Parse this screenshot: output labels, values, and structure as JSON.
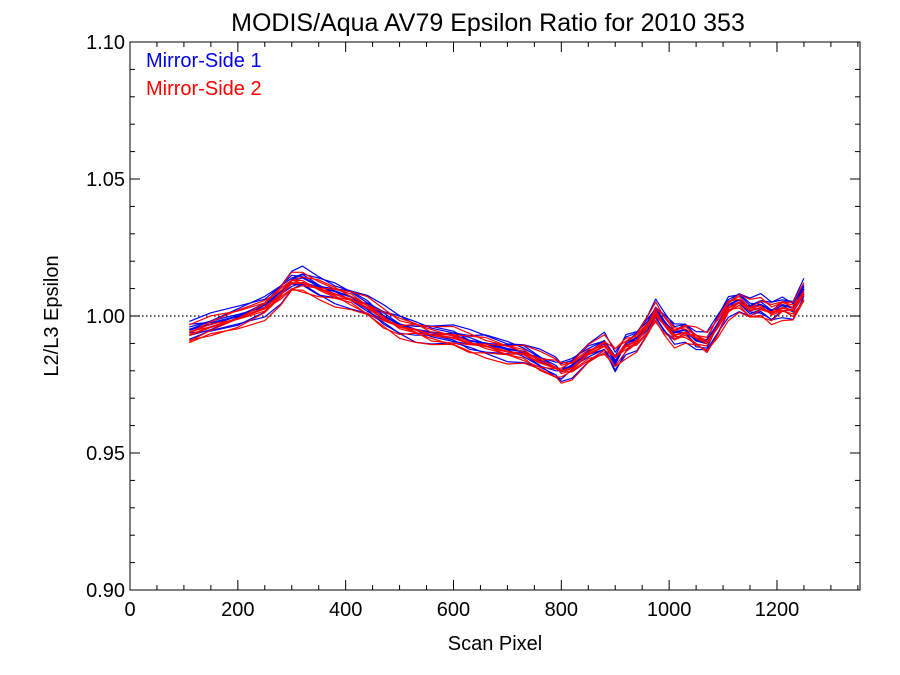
{
  "chart_data": {
    "type": "line",
    "title": "MODIS/Aqua AV79 Epsilon Ratio for 2010 353",
    "xlabel": "Scan Pixel",
    "ylabel": "L2/L3 Epsilon",
    "xlim": [
      0,
      1354
    ],
    "ylim": [
      0.9,
      1.1
    ],
    "x_ticks": [
      0,
      200,
      400,
      600,
      800,
      1000,
      1200
    ],
    "y_ticks": [
      0.9,
      0.95,
      1.0,
      1.05,
      1.1
    ],
    "x_tick_labels": [
      "0",
      "200",
      "400",
      "600",
      "800",
      "1000",
      "1200"
    ],
    "y_tick_labels": [
      "0.90",
      "0.95",
      "1.00",
      "1.05",
      "1.10"
    ],
    "reference_line": {
      "y": 1.0,
      "style": "dotted"
    },
    "legend_position": "top-left",
    "x": [
      110,
      150,
      200,
      250,
      280,
      300,
      320,
      350,
      380,
      410,
      440,
      470,
      500,
      530,
      560,
      600,
      630,
      660,
      700,
      730,
      760,
      790,
      800,
      820,
      850,
      880,
      900,
      920,
      940,
      960,
      975,
      990,
      1010,
      1030,
      1050,
      1070,
      1090,
      1110,
      1130,
      1150,
      1170,
      1190,
      1210,
      1230,
      1250
    ],
    "series": [
      {
        "name": "Mirror-Side 1",
        "color": "#0000ee",
        "values": [
          0.995,
          0.997,
          1.0,
          1.004,
          1.009,
          1.013,
          1.014,
          1.011,
          1.009,
          1.007,
          1.004,
          1.0,
          0.997,
          0.995,
          0.994,
          0.993,
          0.991,
          0.99,
          0.988,
          0.987,
          0.984,
          0.981,
          0.98,
          0.982,
          0.987,
          0.99,
          0.983,
          0.99,
          0.992,
          0.997,
          1.002,
          0.998,
          0.994,
          0.995,
          0.991,
          0.99,
          0.997,
          1.004,
          1.006,
          1.003,
          1.004,
          1.002,
          1.004,
          1.003,
          1.01
        ]
      },
      {
        "name": "Mirror-Side 2",
        "color": "#ff0000",
        "values": [
          0.993,
          0.996,
          0.999,
          1.003,
          1.008,
          1.012,
          1.012,
          1.01,
          1.008,
          1.006,
          1.003,
          0.999,
          0.996,
          0.995,
          0.993,
          0.992,
          0.99,
          0.989,
          0.987,
          0.986,
          0.983,
          0.981,
          0.98,
          0.981,
          0.986,
          0.989,
          0.985,
          0.989,
          0.991,
          0.996,
          1.001,
          0.997,
          0.993,
          0.994,
          0.992,
          0.99,
          0.996,
          1.003,
          1.005,
          1.002,
          1.003,
          1.001,
          1.003,
          1.002,
          1.008
        ]
      }
    ]
  }
}
